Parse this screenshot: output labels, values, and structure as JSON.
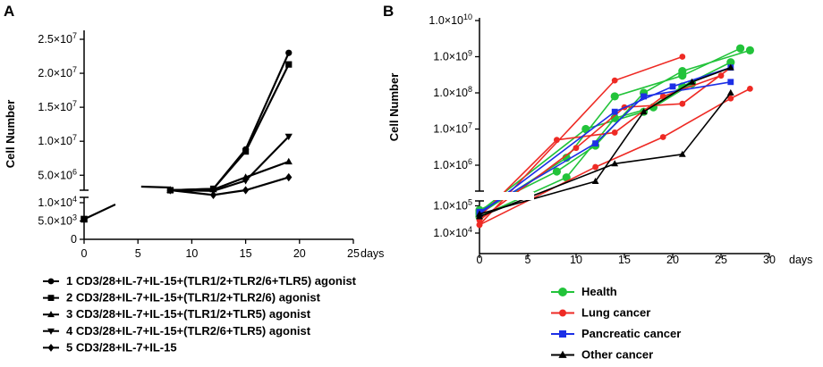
{
  "chart_data": [
    {
      "panel": "A",
      "type": "line",
      "ylabel": "Cell Number",
      "xlabel": "days",
      "x_ticks": [
        "0",
        "5",
        "10",
        "15",
        "20",
        "25"
      ],
      "xlim": [
        0,
        25
      ],
      "y_axis_broken": true,
      "y_upper_ticks": [
        "2.5×10",
        "2.0×10",
        "1.5×10",
        "1.0×10",
        "5.0×10"
      ],
      "y_upper_tick_exponents": [
        "7",
        "7",
        "7",
        "7",
        "6"
      ],
      "y_upper_tick_values": [
        25000000,
        20000000,
        15000000,
        10000000,
        5000000
      ],
      "y_upper_range": [
        2800000,
        25000000
      ],
      "y_lower_ticks": [
        "1.0×10",
        "5.0×10",
        "0"
      ],
      "y_lower_tick_exponents": [
        "4",
        "3",
        ""
      ],
      "y_lower_tick_values": [
        10000,
        5000,
        0
      ],
      "y_lower_range": [
        0,
        10000
      ],
      "legend_labels": [
        "1 CD3/28+IL-7+IL-15+(TLR1/2+TLR2/6+TLR5) agonist",
        "2 CD3/28+IL-7+IL-15+(TLR1/2+TLR2/6) agonist",
        "3 CD3/28+IL-7+IL-15+(TLR1/2+TLR5) agonist",
        "4 CD3/28+IL-7+IL-15+(TLR2/6+TLR5) agonist",
        "5 CD3/28+IL-7+IL-15"
      ],
      "shared_start": {
        "x": [
          0,
          8
        ],
        "y": [
          5500,
          "break"
        ]
      },
      "series": [
        {
          "name": "1",
          "marker": "circle",
          "x": [
            8,
            12,
            15,
            19
          ],
          "y": [
            2800000,
            3000000,
            8800000,
            23000000
          ]
        },
        {
          "name": "2",
          "marker": "square",
          "x": [
            8,
            12,
            15,
            19
          ],
          "y": [
            2800000,
            3000000,
            8500000,
            21300000
          ]
        },
        {
          "name": "3",
          "marker": "triangle-up",
          "x": [
            8,
            12,
            15,
            19
          ],
          "y": [
            2800000,
            2900000,
            4700000,
            7000000
          ]
        },
        {
          "name": "4",
          "marker": "triangle-down",
          "x": [
            8,
            12,
            15,
            19
          ],
          "y": [
            2800000,
            2700000,
            4200000,
            10700000
          ]
        },
        {
          "name": "5",
          "marker": "diamond",
          "x": [
            8,
            12,
            15,
            19
          ],
          "y": [
            2800000,
            2100000,
            2800000,
            4700000
          ]
        }
      ]
    },
    {
      "panel": "B",
      "type": "line",
      "ylabel": "Cell Number",
      "xlabel": "days",
      "x_ticks": [
        "0",
        "5",
        "10",
        "15",
        "20",
        "25",
        "30"
      ],
      "xlim": [
        0,
        30
      ],
      "y_scale": "log",
      "y_axis_broken": true,
      "y_upper_ticks": [
        "1.0×10",
        "1.0×10",
        "1.0×10",
        "1.0×10",
        "1.0×10"
      ],
      "y_upper_tick_exponents": [
        "10",
        "9",
        "8",
        "7",
        "6"
      ],
      "y_lower_ticks": [
        "1.0×10",
        "1.0×10"
      ],
      "y_lower_tick_exponents": [
        "5",
        "4"
      ],
      "groups": [
        {
          "name": "Health",
          "color": "#22c33a",
          "marker": "circle",
          "samples": [
            {
              "x": [
                0,
                9,
                14,
                21,
                27
              ],
              "y": [
                50000,
                1600000,
                80000000,
                300000000,
                1700000000
              ]
            },
            {
              "x": [
                0,
                8,
                12,
                17,
                21,
                28
              ],
              "y": [
                70000,
                700000,
                3500000,
                100000000,
                400000000,
                1500000000
              ]
            },
            {
              "x": [
                0,
                9,
                14,
                18,
                22
              ],
              "y": [
                40000,
                500000,
                20000000,
                40000000,
                180000000
              ]
            },
            {
              "x": [
                0,
                11,
                17,
                21,
                26
              ],
              "y": [
                60000,
                10000000,
                30000000,
                150000000,
                700000000
              ]
            }
          ]
        },
        {
          "name": "Lung cancer",
          "color": "#ee2a24",
          "marker": "circle",
          "samples": [
            {
              "x": [
                0,
                14,
                21
              ],
              "y": [
                20000,
                220000000,
                1000000000
              ]
            },
            {
              "x": [
                0,
                12,
                19,
                26,
                28
              ],
              "y": [
                20000,
                900000,
                6000000,
                70000000,
                130000000
              ]
            },
            {
              "x": [
                0,
                10,
                15,
                21,
                26
              ],
              "y": [
                30000,
                3000000,
                40000000,
                50000000,
                500000000
              ]
            },
            {
              "x": [
                0,
                8,
                14,
                19,
                25
              ],
              "y": [
                40000,
                5000000,
                8000000,
                80000000,
                300000000
              ]
            }
          ]
        },
        {
          "name": "Pancreatic cancer",
          "color": "#1c2fe6",
          "marker": "square",
          "samples": [
            {
              "x": [
                0,
                12,
                17,
                26
              ],
              "y": [
                60000,
                4000000,
                80000000,
                200000000
              ]
            },
            {
              "x": [
                0,
                14,
                20,
                26
              ],
              "y": [
                50000,
                30000000,
                150000000,
                500000000
              ]
            }
          ]
        },
        {
          "name": "Other cancer",
          "color": "#000000",
          "marker": "triangle-up",
          "samples": [
            {
              "x": [
                0,
                14,
                21,
                26
              ],
              "y": [
                40000,
                1100000,
                2000000,
                100000000
              ]
            },
            {
              "x": [
                0,
                12,
                17,
                22,
                26
              ],
              "y": [
                50000,
                400000,
                30000000,
                200000000,
                500000000
              ]
            }
          ]
        }
      ]
    }
  ],
  "labels": {
    "panel_a": "A",
    "panel_b": "B",
    "a_ylabel": "Cell Number",
    "a_xlabel": "days",
    "b_ylabel": "Cell Number",
    "b_xlabel": "days"
  }
}
